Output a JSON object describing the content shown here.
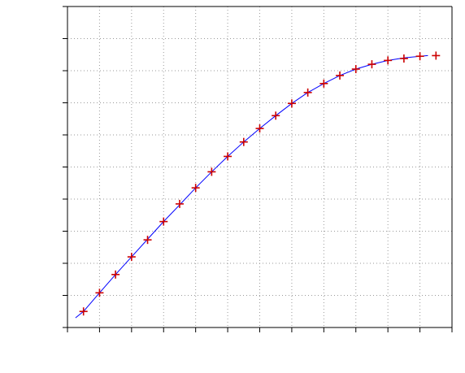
{
  "chart_data": {
    "type": "line",
    "title": "",
    "xlabel": "",
    "ylabel": "",
    "grid": true,
    "xlim": [
      0,
      12
    ],
    "ylim": [
      0,
      10
    ],
    "x_ticks": [
      0,
      1,
      2,
      3,
      4,
      5,
      6,
      7,
      8,
      9,
      10,
      11,
      12
    ],
    "y_ticks": [
      0,
      1,
      2,
      3,
      4,
      5,
      6,
      7,
      8,
      9,
      10
    ],
    "fit_curve": {
      "color": "#0000ff",
      "x": [
        0.25,
        0.5,
        1.0,
        1.5,
        2.0,
        2.5,
        3.0,
        3.5,
        4.0,
        4.5,
        5.0,
        5.5,
        6.0,
        6.5,
        7.0,
        7.5,
        8.0,
        8.5,
        9.0,
        9.5,
        10.0,
        10.5,
        11.0,
        11.25
      ],
      "y": [
        0.3,
        0.5,
        1.08,
        1.65,
        2.2,
        2.75,
        3.3,
        3.82,
        4.35,
        4.85,
        5.33,
        5.78,
        6.2,
        6.6,
        6.98,
        7.32,
        7.6,
        7.85,
        8.05,
        8.2,
        8.32,
        8.4,
        8.45,
        8.47
      ]
    },
    "series": [
      {
        "marker": "plus",
        "color": "#cc0000",
        "x": [
          0.5,
          1.0,
          1.5,
          2.0,
          2.5,
          3.0,
          3.5,
          4.0,
          4.5,
          5.0,
          5.5,
          6.0,
          6.5,
          7.0,
          7.5,
          8.0,
          8.5,
          9.0,
          9.5,
          10.0,
          10.5,
          11.0,
          11.5
        ],
        "y": [
          0.5,
          1.08,
          1.65,
          2.2,
          2.73,
          3.3,
          3.85,
          4.35,
          4.85,
          5.33,
          5.78,
          6.2,
          6.6,
          6.98,
          7.32,
          7.6,
          7.85,
          8.05,
          8.2,
          8.32,
          8.38,
          8.45,
          8.47
        ]
      }
    ]
  }
}
